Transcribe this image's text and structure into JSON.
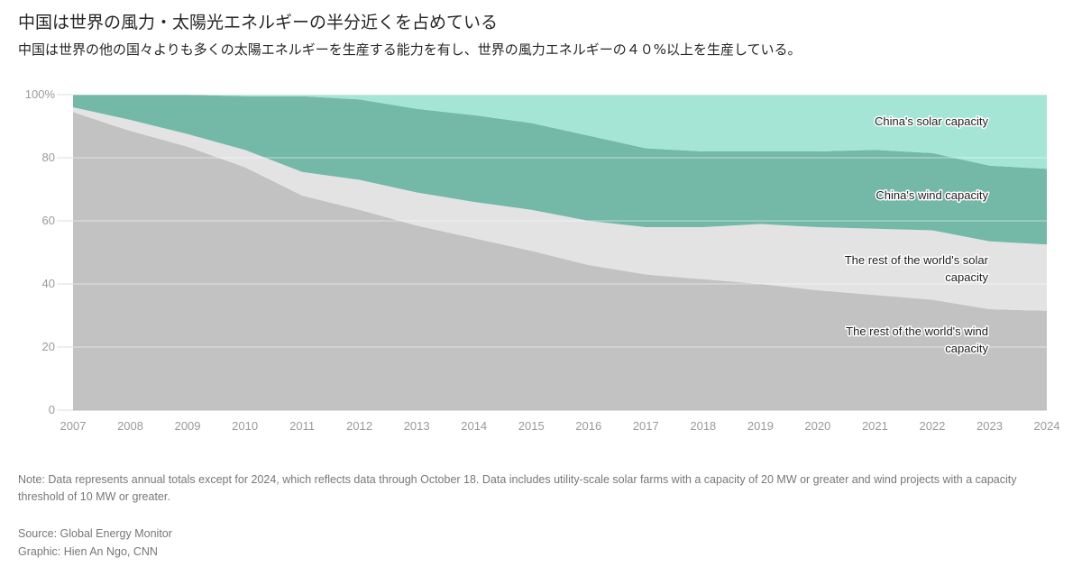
{
  "header": {
    "title": "中国は世界の風力・太陽光エネルギーの半分近くを占めている",
    "subtitle": "中国は世界の他の国々よりも多くの太陽エネルギーを生産する能力を有し、世界の風力エネルギーの４０%以上を生産している。"
  },
  "chart_data": {
    "type": "area",
    "stacked": true,
    "normalized_percent": true,
    "x": [
      2007,
      2008,
      2009,
      2010,
      2011,
      2012,
      2013,
      2014,
      2015,
      2016,
      2017,
      2018,
      2019,
      2020,
      2021,
      2022,
      2023,
      2024
    ],
    "series": [
      {
        "name": "The rest of the world's wind capacity",
        "color": "#c2c2c2",
        "values": [
          94.5,
          88.5,
          83.5,
          77.0,
          68.0,
          63.5,
          58.5,
          54.5,
          50.5,
          46.0,
          43.0,
          41.5,
          40.0,
          38.0,
          36.5,
          35.0,
          32.0,
          31.5
        ]
      },
      {
        "name": "The rest of the world's solar capacity",
        "color": "#e3e3e3",
        "values": [
          1.5,
          3.5,
          4.0,
          5.5,
          7.5,
          9.5,
          10.5,
          11.5,
          13.0,
          14.0,
          15.0,
          16.5,
          19.0,
          20.0,
          21.0,
          22.0,
          21.5,
          21.0
        ]
      },
      {
        "name": "China's wind capacity",
        "color": "#74b8a8",
        "values": [
          4.0,
          8.0,
          12.5,
          17.0,
          24.0,
          25.5,
          26.5,
          27.5,
          27.5,
          27.0,
          25.0,
          24.0,
          23.0,
          24.0,
          25.0,
          24.5,
          24.0,
          24.0
        ]
      },
      {
        "name": "China's solar capacity",
        "color": "#a4e5d5",
        "values": [
          0.0,
          0.0,
          0.0,
          0.5,
          0.5,
          1.5,
          4.5,
          6.5,
          9.0,
          13.0,
          17.0,
          18.0,
          18.0,
          18.0,
          17.5,
          18.5,
          22.5,
          23.5
        ]
      }
    ],
    "y_ticks": [
      "0",
      "20",
      "40",
      "60",
      "80",
      "100%"
    ],
    "ylim": [
      0,
      100
    ],
    "xlim": [
      2007,
      2024
    ],
    "grid": true,
    "legend": "inline labels, right side"
  },
  "footer": {
    "note": "Note: Data represents annual totals except for 2024, which reflects data through October 18. Data includes utility-scale solar farms with a capacity of 20 MW or greater and wind projects with a capacity threshold of 10 MW or greater.",
    "source": "Source: Global Energy Monitor",
    "credit": "Graphic: Hien An Ngo, CNN"
  }
}
